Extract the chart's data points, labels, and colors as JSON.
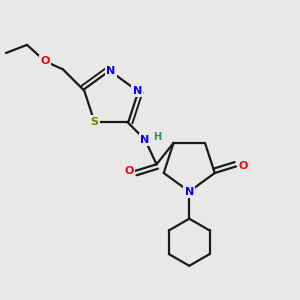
{
  "background_color": "#e8e8e8",
  "bond_color": "#1a1a1a",
  "atom_colors": {
    "N": "#0000ff",
    "O": "#ff0000",
    "S": "#808000",
    "H": "#2e8b57",
    "C": "#1a1a1a"
  }
}
